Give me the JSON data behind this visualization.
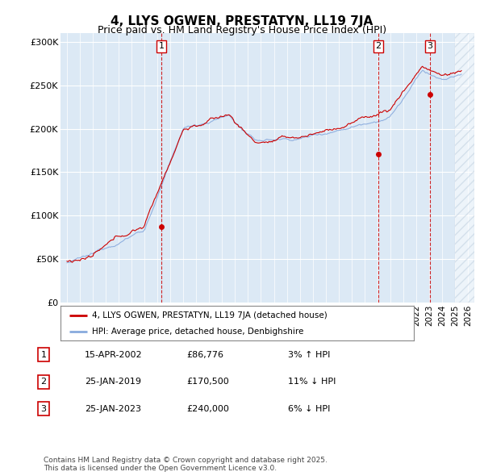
{
  "title": "4, LLYS OGWEN, PRESTATYN, LL19 7JA",
  "subtitle": "Price paid vs. HM Land Registry's House Price Index (HPI)",
  "ylabel_ticks": [
    "£0",
    "£50K",
    "£100K",
    "£150K",
    "£200K",
    "£250K",
    "£300K"
  ],
  "ytick_values": [
    0,
    50000,
    100000,
    150000,
    200000,
    250000,
    300000
  ],
  "ylim": [
    0,
    310000
  ],
  "xlim_start": 1994.5,
  "xlim_end": 2026.5,
  "background_color": "#dce9f5",
  "plot_bg_color": "#dce9f5",
  "grid_color": "#ffffff",
  "line_color_price": "#cc0000",
  "line_color_hpi": "#88aadd",
  "sale_marker_color": "#cc0000",
  "vline_color": "#cc0000",
  "transactions": [
    {
      "label": "1",
      "date": 2002.29,
      "price": 86776
    },
    {
      "label": "2",
      "date": 2019.07,
      "price": 170500
    },
    {
      "label": "3",
      "date": 2023.07,
      "price": 240000
    }
  ],
  "table_rows": [
    {
      "num": "1",
      "date": "15-APR-2002",
      "price": "£86,776",
      "rel": "3% ↑ HPI"
    },
    {
      "num": "2",
      "date": "25-JAN-2019",
      "price": "£170,500",
      "rel": "11% ↓ HPI"
    },
    {
      "num": "3",
      "date": "25-JAN-2023",
      "price": "£240,000",
      "rel": "6% ↓ HPI"
    }
  ],
  "footer": "Contains HM Land Registry data © Crown copyright and database right 2025.\nThis data is licensed under the Open Government Licence v3.0.",
  "legend_entries": [
    "4, LLYS OGWEN, PRESTATYN, LL19 7JA (detached house)",
    "HPI: Average price, detached house, Denbighshire"
  ]
}
